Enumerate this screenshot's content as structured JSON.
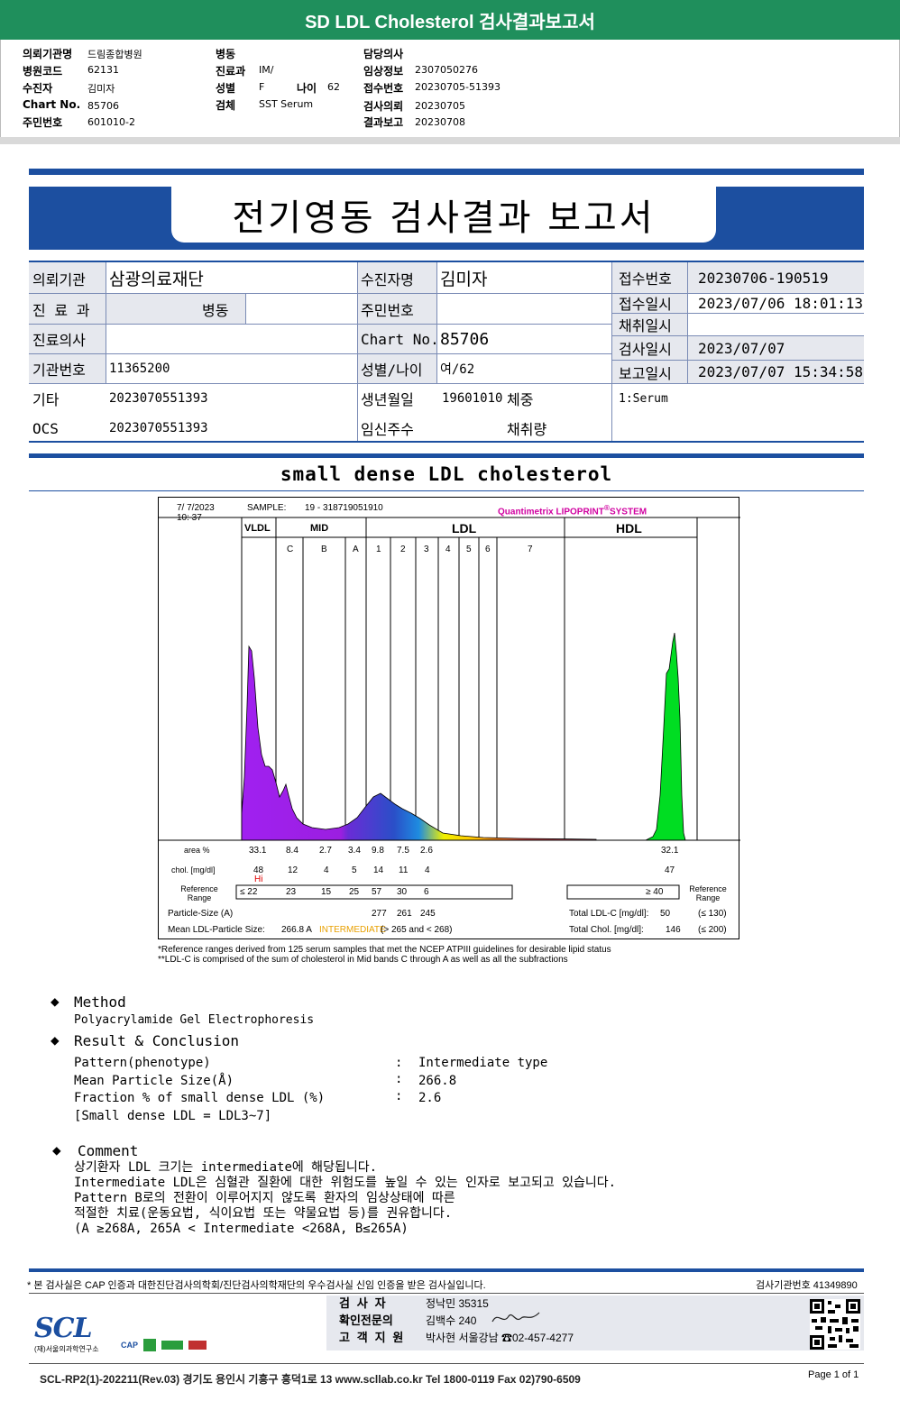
{
  "banner": {
    "title": "SD LDL Cholesterol 검사결과보고서"
  },
  "header": {
    "col1": [
      {
        "k": "의뢰기관명",
        "v": "드림종합병원"
      },
      {
        "k": "병원코드",
        "v": "62131"
      },
      {
        "k": "수진자",
        "v": "김미자"
      },
      {
        "k": "Chart No.",
        "v": "85706"
      },
      {
        "k": "주민번호",
        "v": "601010-2"
      }
    ],
    "col2": [
      {
        "k": "병동",
        "v": ""
      },
      {
        "k": "진료과",
        "v": "IM/"
      },
      {
        "k": "성별",
        "v": "F"
      },
      {
        "k": "검체",
        "v": "SST Serum"
      }
    ],
    "age_label": "나이",
    "age_value": "62",
    "col3": [
      {
        "k": "담당의사",
        "v": ""
      },
      {
        "k": "임상정보",
        "v": "2307050276"
      },
      {
        "k": "접수번호",
        "v": "20230705-51393"
      },
      {
        "k": "검사의뢰",
        "v": "20230705"
      },
      {
        "k": "결과보고",
        "v": "20230708"
      }
    ]
  },
  "report": {
    "title": "전기영동 검사결과 보고서",
    "org_label": "의뢰기관",
    "org_value": "삼광의료재단",
    "dept_label": "진 료 과",
    "ward_label": "병동",
    "doctor_label": "진료의사",
    "inst_label": "기관번호",
    "inst_value": "11365200",
    "etc_label": "기타",
    "etc_value": "2023070551393",
    "ocs_label": "OCS",
    "ocs_value": "2023070551393",
    "patient_label": "수진자명",
    "patient_value": "김미자",
    "rrn_label": "주민번호",
    "rrn_value": "",
    "chart_label": "Chart No.",
    "chart_value": "85706",
    "sexage_label": "성별/나이",
    "sexage_value": "여/62",
    "dob_label": "생년월일",
    "dob_value": "19601010",
    "weight_label": "체중",
    "preg_label": "임신주수",
    "amount_label": "채취량",
    "recv_no_label": "접수번호",
    "recv_no_value": "20230706-190519",
    "recv_date_label": "접수일시",
    "recv_date_value": "2023/07/06 18:01:13",
    "collect_label": "채취일시",
    "collect_value": "",
    "test_label": "검사일시",
    "test_value": "2023/07/07",
    "report_label": "보고일시",
    "report_value": "2023/07/07 15:34:58",
    "specimen": "1:Serum"
  },
  "section_title": "small dense LDL cholesterol",
  "chart": {
    "date": "7/  7/2023",
    "time": "10: 37",
    "sample_label": "SAMPLE:",
    "sample_value": "19 - 318719051910",
    "brand_prefix": "Quantimetrix",
    "brand_name": "LIPOPRINT",
    "brand_suffix": "SYSTEM",
    "brand_mark": "®",
    "groups": [
      "VLDL",
      "MID",
      "LDL",
      "HDL"
    ],
    "bands": [
      "C",
      "B",
      "A",
      "1",
      "2",
      "3",
      "4",
      "5",
      "6",
      "7"
    ],
    "area_label": "area %",
    "chol_label": "chol. [mg/dl]",
    "ref_label_1": "Reference",
    "ref_label_2": "Range",
    "area": [
      "33.1",
      "8.4",
      "2.7",
      "3.4",
      "9.8",
      "7.5",
      "2.6",
      "32.1"
    ],
    "chol": [
      "48",
      "12",
      "4",
      "5",
      "14",
      "11",
      "4",
      "47"
    ],
    "hi_flag": "Hi",
    "ref_left": [
      "≤ 22",
      "23",
      "15",
      "25",
      "57",
      "30",
      "6"
    ],
    "ref_hdl": "≥ 40",
    "psize_label": "Particle-Size (A)",
    "psize": [
      "277",
      "261",
      "245"
    ],
    "mean_label": "Mean LDL-Particle Size:",
    "mean_value": "266.8 A",
    "mean_class": "INTERMEDIATE",
    "mean_rule": "(> 265 and < 268)",
    "ldlc_label": "Total LDL-C [mg/dl]:",
    "ldlc_value": "50",
    "ldlc_ref": "(≤ 130)",
    "tchol_label": "Total Chol. [mg/dl]:",
    "tchol_value": "146",
    "tchol_ref": "(≤ 200)"
  },
  "chart_data": {
    "type": "area",
    "title": "",
    "series": [
      {
        "name": "area %",
        "categories": [
          "VLDL",
          "C",
          "B",
          "A",
          "1",
          "2",
          "3",
          "HDL"
        ],
        "values": [
          33.1,
          8.4,
          2.7,
          3.4,
          9.8,
          7.5,
          2.6,
          32.1
        ]
      },
      {
        "name": "chol. [mg/dl]",
        "categories": [
          "VLDL",
          "C",
          "B",
          "A",
          "1",
          "2",
          "3",
          "HDL"
        ],
        "values": [
          48,
          12,
          4,
          5,
          14,
          11,
          4,
          47
        ]
      }
    ]
  },
  "notes": {
    "n1": "*Reference ranges derived from 125 serum samples that met the NCEP ATPIII guidelines for desirable lipid status",
    "n2": "**LDL-C is comprised of the sum of cholesterol in Mid bands C through A as well as all the subfractions"
  },
  "method": {
    "bullet": "◆",
    "title": "Method",
    "text": "Polyacrylamide Gel Electrophoresis"
  },
  "result": {
    "title": "Result & Conclusion",
    "rows": [
      {
        "k": "Pattern(phenotype)",
        "v": "Intermediate type"
      },
      {
        "k": "Mean Particle Size(Å)",
        "v": "266.8"
      },
      {
        "k": "Fraction % of small dense LDL (%)",
        "v": "2.6"
      }
    ],
    "note": "[Small dense LDL = LDL3~7]",
    "colon": ":"
  },
  "comment": {
    "title": "Comment",
    "lines": [
      "상기환자 LDL 크기는 intermediate에 해당됩니다.",
      "Intermediate LDL은 심혈관 질환에 대한 위험도를 높일 수 있는 인자로 보고되고 있습니다.",
      "Pattern B로의 전환이 이루어지지 않도록 환자의 임상상태에 따른",
      "적절한 치료(운동요법, 식이요법 또는 약물요법 등)를 권유합니다.",
      "(A ≥268A, 265A < Intermediate <268A, B≤265A)"
    ]
  },
  "footer": {
    "cert": "* 본 검사실은 CAP 인증과 대한진단검사의학회/진단검사의학재단의 우수검사실 신임 인증을 받은 검사실입니다.",
    "lab_no": "검사기관번호 41349890",
    "logo": "SCL",
    "logo_sub": "(재)서울의과학연구소",
    "cap": "CAP",
    "staff": [
      {
        "k": "검 사 자",
        "v": "정낙민 35315"
      },
      {
        "k": "확인전문의",
        "v": "김백수 240"
      },
      {
        "k": "고 객 지 원",
        "v": "박사현 서울강남 ☎02-457-4277"
      }
    ],
    "bottom": "SCL-RP2(1)-202211(Rev.03)  경기도 용인시 기흥구 흥덕1로 13  www.scllab.co.kr  Tel 1800-0119  Fax 02)790-6509",
    "page": "Page 1 of 1"
  }
}
